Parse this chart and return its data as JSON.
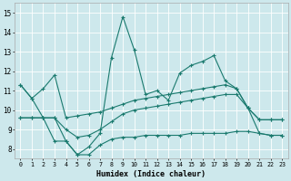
{
  "xlabel": "Humidex (Indice chaleur)",
  "bg_color": "#cde8ec",
  "grid_color": "#ffffff",
  "line_color": "#1a7a6e",
  "xlim": [
    -0.5,
    23.5
  ],
  "ylim": [
    7.5,
    15.5
  ],
  "xticks": [
    0,
    1,
    2,
    3,
    4,
    5,
    6,
    7,
    8,
    9,
    10,
    11,
    12,
    13,
    14,
    15,
    16,
    17,
    18,
    19,
    20,
    21,
    22,
    23
  ],
  "yticks": [
    8,
    9,
    10,
    11,
    12,
    13,
    14,
    15
  ],
  "line_a_y": [
    11.3,
    10.6,
    9.6,
    8.4,
    8.4,
    7.7,
    8.1,
    8.8,
    12.7,
    14.8,
    13.1,
    10.8,
    11.0,
    10.5,
    11.9,
    12.3,
    12.5,
    12.8,
    11.5,
    11.1,
    10.1,
    8.8,
    8.7,
    8.7
  ],
  "line_b_y": [
    11.3,
    10.6,
    11.1,
    11.8,
    9.6,
    9.7,
    9.8,
    9.9,
    10.1,
    10.3,
    10.5,
    10.6,
    10.7,
    10.8,
    10.9,
    11.0,
    11.1,
    11.2,
    11.3,
    11.1,
    10.1,
    9.5,
    9.5,
    9.5
  ],
  "line_c_y": [
    9.6,
    9.6,
    9.6,
    9.6,
    9.0,
    8.6,
    8.7,
    9.0,
    9.4,
    9.8,
    10.0,
    10.1,
    10.2,
    10.3,
    10.4,
    10.5,
    10.6,
    10.7,
    10.8,
    10.8,
    10.1,
    9.5,
    9.5,
    9.5
  ],
  "line_d_y": [
    9.6,
    9.6,
    9.6,
    9.6,
    8.4,
    7.7,
    7.7,
    8.2,
    8.5,
    8.6,
    8.6,
    8.7,
    8.7,
    8.7,
    8.7,
    8.8,
    8.8,
    8.8,
    8.8,
    8.9,
    8.9,
    8.8,
    8.7,
    8.7
  ]
}
